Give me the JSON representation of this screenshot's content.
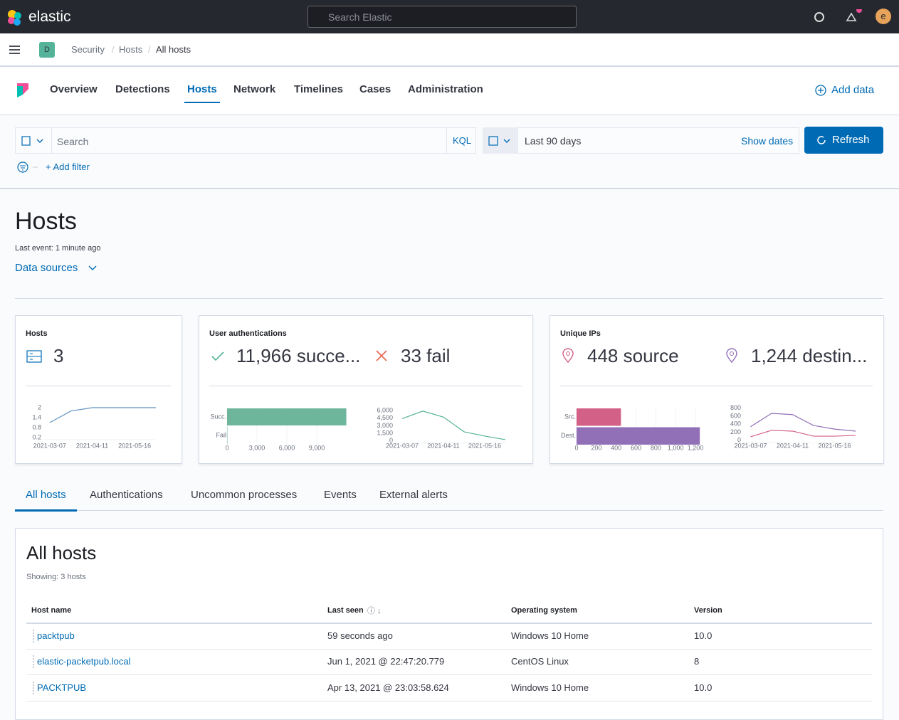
{
  "header": {
    "brand": "elastic",
    "search_placeholder": "Search Elastic",
    "avatar": "e"
  },
  "breadcrumbs": {
    "space": "D",
    "items": [
      "Security",
      "Hosts",
      "All hosts"
    ]
  },
  "nav": {
    "tabs": [
      "Overview",
      "Detections",
      "Hosts",
      "Network",
      "Timelines",
      "Cases",
      "Administration"
    ],
    "active_index": 2,
    "add_data": "Add data"
  },
  "query": {
    "search_placeholder": "Search",
    "language": "KQL",
    "date": "Last 90 days",
    "show_dates": "Show dates",
    "refresh": "Refresh",
    "add_filter": "+ Add filter"
  },
  "page": {
    "title": "Hosts",
    "last_event": "Last event: 1 minute ago",
    "data_sources": "Data sources"
  },
  "kpis": {
    "hosts": {
      "title": "Hosts",
      "value": "3"
    },
    "auth": {
      "title": "User authentications",
      "success": "11,966 succe...",
      "fail": "33 fail"
    },
    "ips": {
      "title": "Unique IPs",
      "source": "448 source",
      "destination": "1,244 destin..."
    }
  },
  "chart_data": [
    {
      "type": "line",
      "categories": [
        null,
        "2021-03-07",
        null,
        "2021-04-11",
        null,
        "2021-05-16",
        null
      ],
      "values": [
        null,
        1.1,
        1.8,
        2,
        2,
        2,
        2
      ],
      "color": "#6092c0",
      "ylim": [
        0.2,
        2
      ],
      "yticks": [
        0.2,
        0.8,
        1.4,
        2
      ]
    },
    {
      "type": "bar",
      "orientation": "horizontal",
      "categories": [
        "Succ.",
        "Fail"
      ],
      "values": [
        11966,
        33
      ],
      "colors": [
        "#6db59b",
        "#6db59b"
      ],
      "xlim": [
        0,
        12000
      ],
      "xticks": [
        0,
        {
          "value": 3000,
          "label": "3,000"
        },
        {
          "value": 6000,
          "label": "6,000"
        },
        {
          "value": 9000,
          "label": "9,000"
        }
      ]
    },
    {
      "type": "line",
      "categories": [
        null,
        "2021-03-07",
        null,
        "2021-04-11",
        null,
        "2021-05-16",
        null
      ],
      "values": [
        null,
        4400,
        5900,
        4700,
        1800,
        950,
        250
      ],
      "color": "#54b399",
      "ylim": [
        0,
        6500
      ],
      "yticks": [
        0,
        {
          "value": 1500,
          "label": "1,500"
        },
        {
          "value": 3000,
          "label": "3,000"
        },
        {
          "value": 4500,
          "label": "4,500"
        },
        {
          "value": 6000,
          "label": "6,000"
        }
      ]
    },
    {
      "type": "bar",
      "orientation": "horizontal",
      "categories": [
        "Src.",
        "Dest."
      ],
      "values": [
        448,
        1244
      ],
      "colors": [
        "#d36086",
        "#9170b8"
      ],
      "xlim": [
        0,
        1250
      ],
      "xticks": [
        0,
        200,
        400,
        600,
        800,
        {
          "value": 1000,
          "label": "1,000"
        },
        {
          "value": 1200,
          "label": "1,200"
        }
      ]
    },
    {
      "type": "line",
      "categories": [
        null,
        "2021-03-07",
        null,
        "2021-04-11",
        null,
        "2021-05-16",
        null
      ],
      "series": [
        {
          "color": "#9170b8",
          "values": [
            null,
            340,
            670,
            640,
            370,
            280,
            230
          ]
        },
        {
          "color": "#d36086",
          "values": [
            null,
            90,
            250,
            230,
            105,
            105,
            125
          ]
        }
      ],
      "ylim": [
        0,
        900
      ],
      "yticks": [
        0,
        200,
        400,
        600,
        800
      ]
    }
  ],
  "tabs": {
    "items": [
      "All hosts",
      "Authentications",
      "Uncommon processes",
      "Events",
      "External alerts"
    ],
    "active_index": 0
  },
  "table": {
    "title": "All hosts",
    "subtitle": "Showing: 3 hosts",
    "columns": [
      "Host name",
      "Last seen",
      "Operating system",
      "Version"
    ],
    "rows": [
      [
        "packtpub",
        "59 seconds ago",
        "Windows 10 Home",
        "10.0"
      ],
      [
        "elastic-packetpub.local",
        "Jun 1, 2021 @ 22:47:20.779",
        "CentOS Linux",
        "8"
      ],
      [
        "PACKTPUB",
        "Apr 13, 2021 @ 23:03:58.624",
        "Windows 10 Home",
        "10.0"
      ]
    ]
  }
}
